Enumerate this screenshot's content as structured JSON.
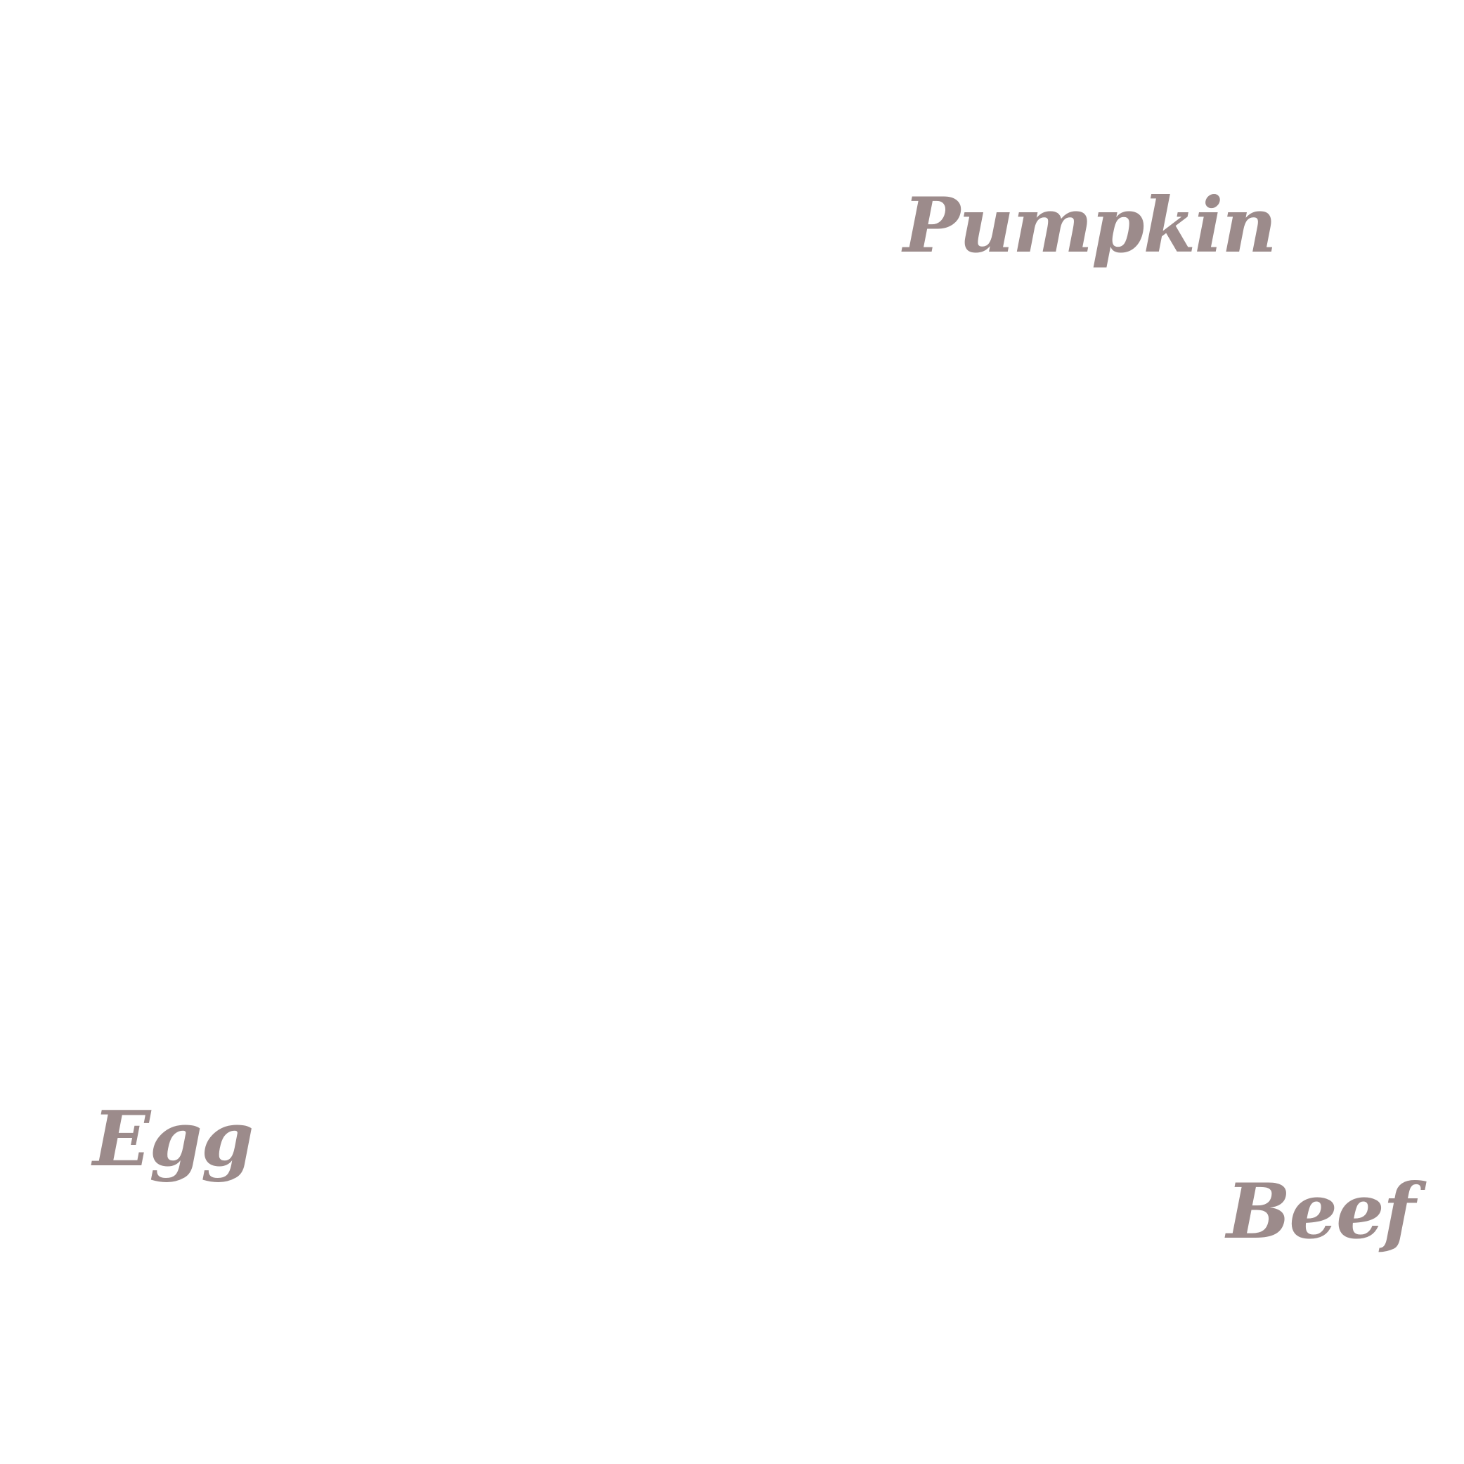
{
  "background": "#ffffff",
  "text_color": "#9c8b8b",
  "labels": {
    "pumpkin": "Pumpkin",
    "egg": "Egg",
    "beef": "Beef"
  }
}
